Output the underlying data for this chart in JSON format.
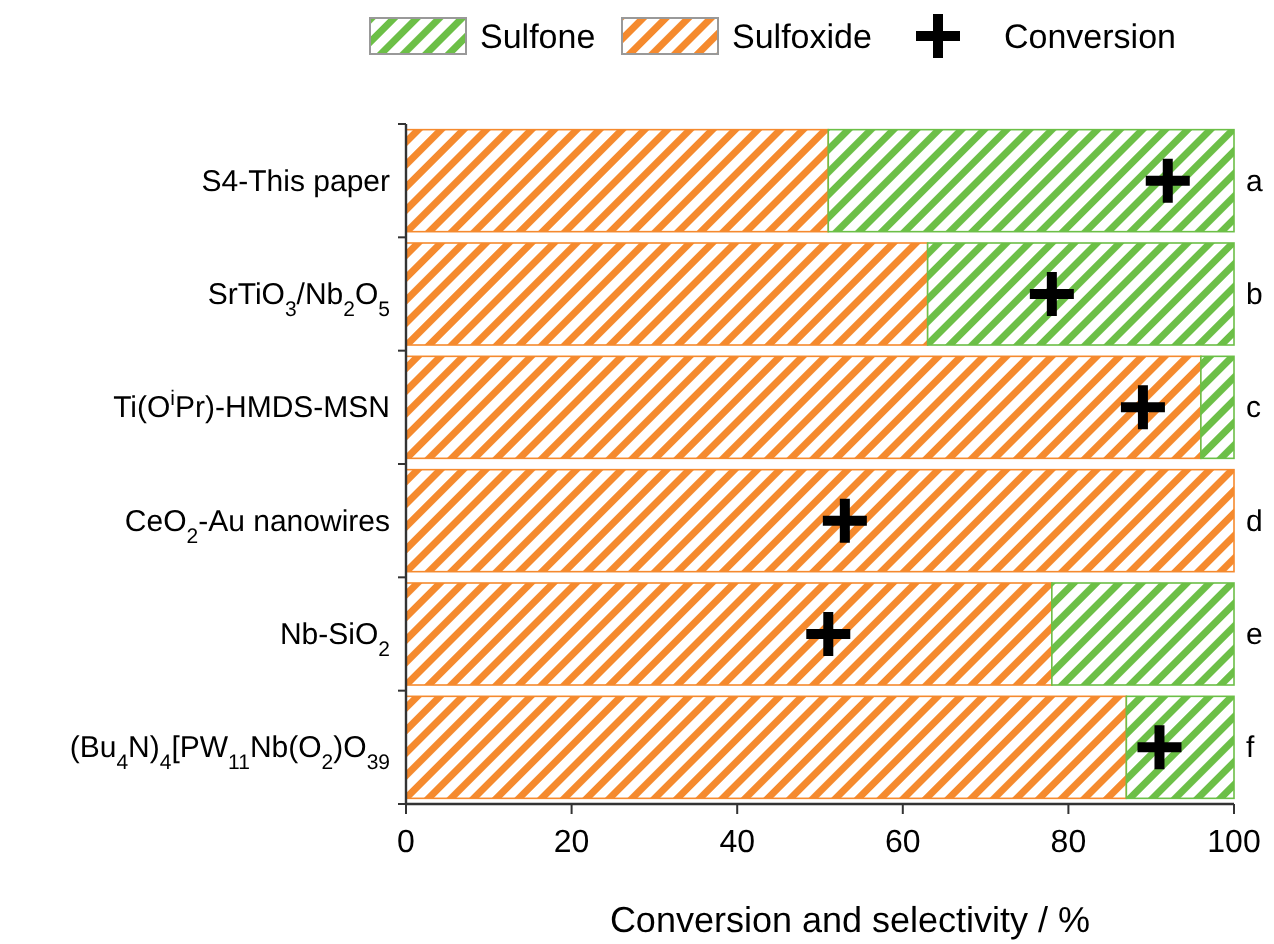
{
  "chart_data": {
    "type": "bar",
    "orientation": "horizontal",
    "stacked": true,
    "xlabel": "Conversion and selectivity / %",
    "categories": [
      "S4-This paper",
      "SrTiO$_{3}$/Nb$_{2}$O$_{5}$",
      "Ti(O$^{i}$Pr)-HMDS-MSN",
      "CeO$_{2}$-Au nanowires",
      "Nb-SiO$_{2}$",
      "(Bu$_{4}$N)$_{4}$[PW$_{11}$Nb(O$_{2}$)O$_{39}$"
    ],
    "series": [
      {
        "name": "Sulfoxide",
        "color": "#f58a2e",
        "values": [
          51,
          63,
          96,
          100,
          78,
          87
        ]
      },
      {
        "name": "Sulfone",
        "color": "#6cbf47",
        "values": [
          49,
          37,
          4,
          0,
          22,
          13
        ]
      },
      {
        "name": "Conversion",
        "type": "scatter",
        "marker": "cross",
        "color": "#000000",
        "values": [
          92,
          78,
          89,
          53,
          51,
          91
        ]
      }
    ],
    "xlim": [
      0,
      100
    ],
    "xticks": [
      0,
      20,
      40,
      60,
      80,
      100
    ],
    "grid": false,
    "legend": "top",
    "annotations": [
      "a",
      "b",
      "c",
      "d",
      "e",
      "f"
    ]
  }
}
